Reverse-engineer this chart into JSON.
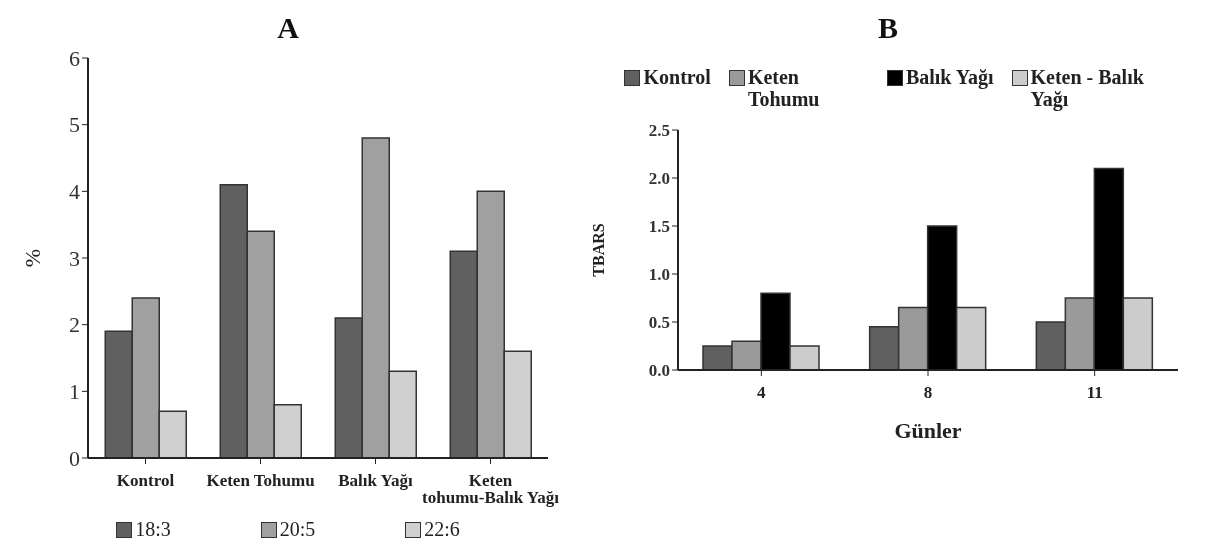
{
  "chart_data": [
    {
      "type": "bar",
      "title": "A",
      "ylabel": "%",
      "categories": [
        "Kontrol",
        "Keten Tohumu",
        "Balık Yağı",
        "Keten tohumu-Balık Yağı"
      ],
      "series": [
        {
          "name": "18:3",
          "color": "#606060",
          "values": [
            1.9,
            4.1,
            2.1,
            3.1
          ]
        },
        {
          "name": "20:5",
          "color": "#a0a0a0",
          "values": [
            2.4,
            3.4,
            4.8,
            4.0
          ]
        },
        {
          "name": "22:6",
          "color": "#d0d0d0",
          "values": [
            0.7,
            0.8,
            1.3,
            1.6
          ]
        }
      ],
      "ylim": [
        0,
        6
      ],
      "yticks": [
        0,
        1,
        2,
        3,
        4,
        5,
        6
      ],
      "grid": false,
      "legend": "bottom"
    },
    {
      "type": "bar",
      "title": "B",
      "xlabel": "Günler",
      "ylabel": "TBARS",
      "categories": [
        "4",
        "8",
        "11"
      ],
      "series": [
        {
          "name": "Kontrol",
          "color": "#606060",
          "values": [
            0.25,
            0.45,
            0.5
          ]
        },
        {
          "name": "Keten Tohumu",
          "color": "#9a9a9a",
          "values": [
            0.3,
            0.65,
            0.75
          ]
        },
        {
          "name": "Balık Yağı",
          "color": "#000000",
          "values": [
            0.8,
            1.5,
            2.1
          ]
        },
        {
          "name": "Keten - Balık Yağı",
          "color": "#cccccc",
          "values": [
            0.25,
            0.65,
            0.75
          ]
        }
      ],
      "ylim": [
        0,
        2.5
      ],
      "yticks": [
        {
          "value": 0,
          "label": "0.0"
        },
        {
          "value": 0.5,
          "label": "0.5"
        },
        {
          "value": 1,
          "label": "1.0"
        },
        {
          "value": 1.5,
          "label": "1.5"
        },
        {
          "value": 2,
          "label": "2.0"
        },
        {
          "value": 2.5,
          "label": "2.5"
        }
      ],
      "grid": false,
      "legend": "top"
    }
  ]
}
